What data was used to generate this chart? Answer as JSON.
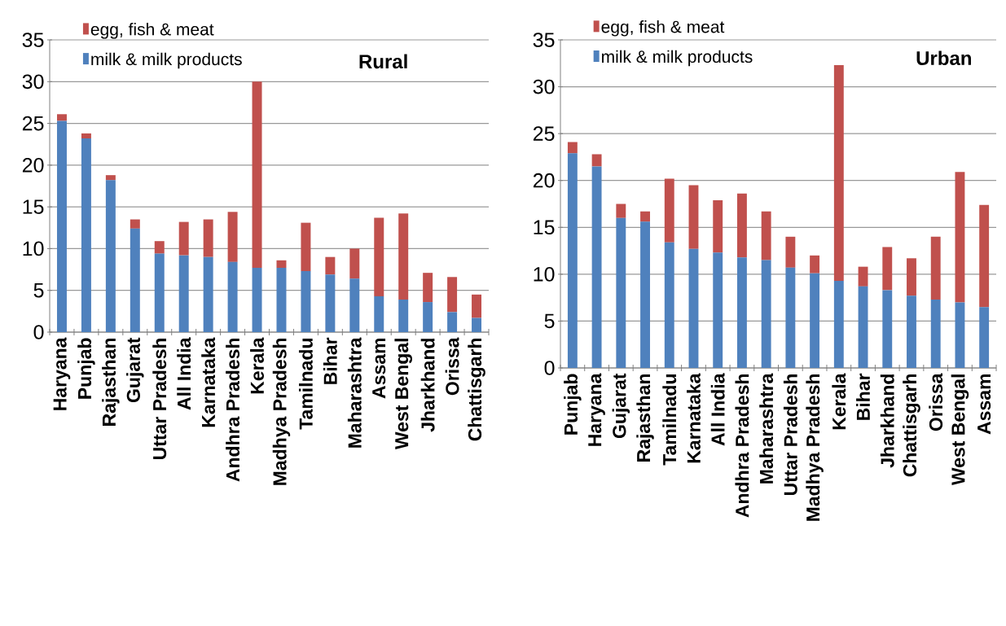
{
  "chart_data": [
    {
      "type": "bar",
      "stacked": true,
      "title": "Rural",
      "categories": [
        "Haryana",
        "Punjab",
        "Rajasthan",
        "Gujarat",
        "Uttar Pradesh",
        "All India",
        "Karnataka",
        "Andhra Pradesh",
        "Kerala",
        "Madhya Pradesh",
        "Tamilnadu",
        "Bihar",
        "Maharashtra",
        "Assam",
        "West Bengal",
        "Jharkhand",
        "Orissa",
        "Chattisgarh"
      ],
      "series": [
        {
          "name": "milk & milk products",
          "color": "#4f81bd",
          "values": [
            25.3,
            23.2,
            18.2,
            12.4,
            9.4,
            9.2,
            9.0,
            8.4,
            7.7,
            7.7,
            7.3,
            6.9,
            6.4,
            4.3,
            3.9,
            3.6,
            2.4,
            1.7
          ]
        },
        {
          "name": "egg, fish & meat",
          "color": "#c0504d",
          "values": [
            0.8,
            0.6,
            0.6,
            1.1,
            1.5,
            4.0,
            4.5,
            6.0,
            22.3,
            0.9,
            5.8,
            2.1,
            3.6,
            9.4,
            10.3,
            3.5,
            4.2,
            2.8
          ]
        }
      ],
      "ylim": [
        0,
        35
      ],
      "yticks": [
        0,
        5,
        10,
        15,
        20,
        25,
        30,
        35
      ],
      "grid": "y",
      "legend": "top left"
    },
    {
      "type": "bar",
      "stacked": true,
      "title": "Urban",
      "categories": [
        "Punjab",
        "Haryana",
        "Gujarat",
        "Rajasthan",
        "Tamilnadu",
        "Karnataka",
        "All India",
        "Andhra Pradesh",
        "Maharashtra",
        "Uttar Pradesh",
        "Madhya Pradesh",
        "Kerala",
        "Bihar",
        "Jharkhand",
        "Chattisgarh",
        "Orissa",
        "West Bengal",
        "Assam"
      ],
      "series": [
        {
          "name": "milk & milk products",
          "color": "#4f81bd",
          "values": [
            22.9,
            21.5,
            16.0,
            15.6,
            13.4,
            12.7,
            12.3,
            11.8,
            11.5,
            10.7,
            10.1,
            9.3,
            8.7,
            8.3,
            7.7,
            7.3,
            7.0,
            6.5
          ]
        },
        {
          "name": "egg, fish & meat",
          "color": "#c0504d",
          "values": [
            1.2,
            1.3,
            1.5,
            1.1,
            6.8,
            6.8,
            5.6,
            6.8,
            5.2,
            3.3,
            1.9,
            23.0,
            2.1,
            4.6,
            4.0,
            6.7,
            13.9,
            10.9
          ]
        }
      ],
      "ylim": [
        0,
        35
      ],
      "yticks": [
        0,
        5,
        10,
        15,
        20,
        25,
        30,
        35
      ],
      "grid": "y",
      "legend": "top left"
    }
  ]
}
